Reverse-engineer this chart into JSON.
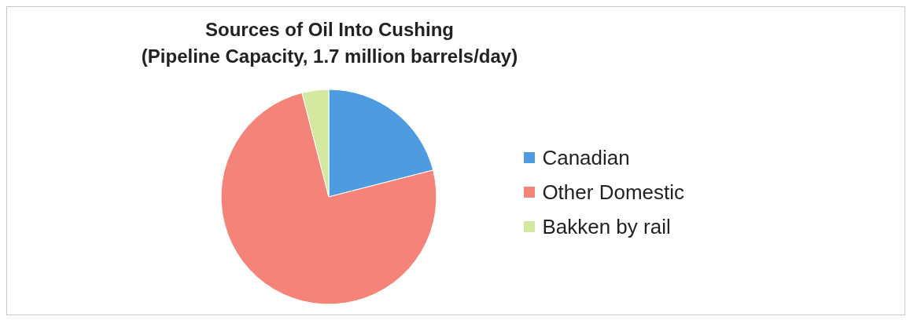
{
  "chart_data": {
    "type": "pie",
    "title": "Sources of Oil Into Cushing",
    "subtitle": "(Pipeline Capacity, 1.7 million barrels/day)",
    "categories": [
      "Canadian",
      "Other Domestic",
      "Bakken by rail"
    ],
    "values": [
      21,
      75,
      4
    ],
    "colors": [
      "#4f9be0",
      "#f4837a",
      "#d5e8a0"
    ],
    "legend": "right"
  }
}
